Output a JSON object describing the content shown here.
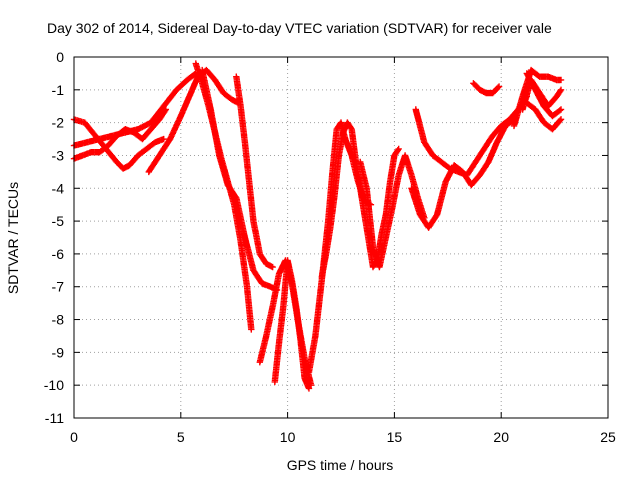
{
  "chart_data": {
    "type": "scatter",
    "title": "Day 302 of 2014, Sidereal Day-to-day VTEC variation (SDTVAR) for receiver vale",
    "xlabel": "GPS time / hours",
    "ylabel": "SDTVAR / TECUs",
    "xlim": [
      0,
      25
    ],
    "ylim": [
      -11,
      0
    ],
    "x_ticks": [
      "0",
      "5",
      "10",
      "15",
      "20",
      "25"
    ],
    "y_ticks": [
      "0",
      "-1",
      "-2",
      "-3",
      "-4",
      "-5",
      "-6",
      "-7",
      "-8",
      "-9",
      "-10",
      "-11"
    ],
    "grid": true,
    "marker": "+",
    "color": "#ff0000",
    "series": [
      {
        "x": [
          0.0,
          0.5,
          1.0,
          1.5,
          2.0,
          2.3,
          2.6,
          3.0,
          3.4,
          3.8,
          4.2
        ],
        "y": [
          -1.9,
          -2.0,
          -2.4,
          -2.8,
          -3.2,
          -3.4,
          -3.3,
          -3.0,
          -2.8,
          -2.6,
          -2.5
        ]
      },
      {
        "x": [
          0.0,
          0.4,
          0.8,
          1.2,
          1.6,
          2.0,
          2.4,
          2.8,
          3.2,
          3.6,
          4.0,
          4.3
        ],
        "y": [
          -3.1,
          -3.0,
          -2.9,
          -2.9,
          -2.7,
          -2.4,
          -2.2,
          -2.3,
          -2.5,
          -2.2,
          -1.9,
          -1.6
        ]
      },
      {
        "x": [
          0.0,
          0.6,
          1.2,
          1.8,
          2.4,
          3.0,
          3.6,
          4.2,
          4.8,
          5.3,
          5.7
        ],
        "y": [
          -2.7,
          -2.6,
          -2.5,
          -2.4,
          -2.3,
          -2.2,
          -2.0,
          -1.5,
          -1.0,
          -0.7,
          -0.5
        ]
      },
      {
        "x": [
          3.5,
          4.0,
          4.5,
          5.0,
          5.4,
          5.8,
          6.2,
          6.6,
          7.0,
          7.4,
          7.7
        ],
        "y": [
          -3.5,
          -3.0,
          -2.5,
          -1.8,
          -1.2,
          -0.6,
          -0.4,
          -0.7,
          -1.1,
          -1.3,
          -1.4
        ]
      },
      {
        "x": [
          5.7,
          6.0,
          6.3,
          6.6,
          6.9,
          7.2,
          7.5,
          7.8,
          8.1,
          8.3
        ],
        "y": [
          -0.2,
          -0.8,
          -1.5,
          -2.3,
          -3.1,
          -3.8,
          -4.5,
          -5.6,
          -7.0,
          -8.3
        ]
      },
      {
        "x": [
          6.0,
          6.4,
          6.8,
          7.2,
          7.6,
          8.0,
          8.4,
          8.8,
          9.2,
          9.5
        ],
        "y": [
          -0.4,
          -1.6,
          -3.0,
          -3.9,
          -4.3,
          -5.5,
          -6.5,
          -6.9,
          -7.0,
          -7.1
        ]
      },
      {
        "x": [
          7.6,
          7.8,
          8.0,
          8.2,
          8.4,
          8.7,
          9.0,
          9.3
        ],
        "y": [
          -0.6,
          -1.5,
          -2.6,
          -3.8,
          -5.0,
          -6.0,
          -6.3,
          -6.4
        ]
      },
      {
        "x": [
          8.7,
          9.0,
          9.3,
          9.6,
          9.9,
          10.2,
          10.5,
          10.8,
          11.1
        ],
        "y": [
          -9.3,
          -8.5,
          -7.6,
          -6.6,
          -6.2,
          -6.9,
          -8.1,
          -9.2,
          -10.0
        ]
      },
      {
        "x": [
          9.4,
          9.6,
          9.8,
          10.0,
          10.2,
          10.4,
          10.6,
          10.8,
          11.0
        ],
        "y": [
          -9.9,
          -8.7,
          -7.6,
          -6.2,
          -6.8,
          -7.6,
          -8.6,
          -9.8,
          -10.1
        ]
      },
      {
        "x": [
          11.0,
          11.3,
          11.6,
          11.9,
          12.1,
          12.3,
          12.5,
          12.7,
          13.0,
          13.3,
          13.6,
          13.9
        ],
        "y": [
          -9.6,
          -8.5,
          -6.8,
          -5.0,
          -3.5,
          -2.2,
          -2.0,
          -2.5,
          -3.0,
          -3.8,
          -4.4,
          -4.5
        ]
      },
      {
        "x": [
          11.6,
          11.8,
          12.0,
          12.2,
          12.4,
          12.6,
          12.8,
          13.0,
          13.2,
          13.4,
          13.6,
          13.8,
          14.0,
          14.2,
          14.4,
          14.6,
          14.8,
          15.0,
          15.2
        ],
        "y": [
          -6.7,
          -6.0,
          -5.2,
          -4.2,
          -3.0,
          -2.3,
          -2.0,
          -2.2,
          -3.2,
          -4.0,
          -4.8,
          -5.6,
          -6.4,
          -6.2,
          -5.4,
          -4.8,
          -3.8,
          -3.0,
          -2.8
        ]
      },
      {
        "x": [
          13.4,
          13.7,
          14.0,
          14.3,
          14.6,
          14.9,
          15.2,
          15.5,
          15.8,
          16.1,
          16.4
        ],
        "y": [
          -3.2,
          -4.0,
          -5.8,
          -6.4,
          -5.5,
          -4.6,
          -3.6,
          -3.0,
          -3.6,
          -4.3,
          -4.9
        ]
      },
      {
        "x": [
          15.8,
          16.2,
          16.6,
          17.0,
          17.4,
          17.8,
          18.2,
          18.6,
          19.0,
          19.4,
          19.8,
          20.2,
          20.6
        ],
        "y": [
          -4.0,
          -4.8,
          -5.2,
          -4.8,
          -3.8,
          -3.3,
          -3.5,
          -3.9,
          -3.6,
          -3.2,
          -2.6,
          -2.1,
          -1.9
        ]
      },
      {
        "x": [
          16.0,
          16.4,
          16.8,
          17.2,
          17.6,
          18.0,
          18.4,
          18.8,
          19.2,
          19.6,
          20.0,
          20.4,
          20.8,
          21.2
        ],
        "y": [
          -1.6,
          -2.6,
          -3.0,
          -3.2,
          -3.4,
          -3.5,
          -3.6,
          -3.2,
          -2.8,
          -2.4,
          -2.1,
          -1.9,
          -1.6,
          -1.2
        ]
      },
      {
        "x": [
          18.7,
          19.0,
          19.3,
          19.6,
          19.9
        ],
        "y": [
          -0.8,
          -1.0,
          -1.1,
          -1.1,
          -0.9
        ]
      },
      {
        "x": [
          20.6,
          21.0,
          21.4,
          21.8,
          22.2,
          22.6,
          22.8
        ],
        "y": [
          -2.1,
          -1.2,
          -0.4,
          -0.6,
          -0.6,
          -0.7,
          -0.7
        ]
      },
      {
        "x": [
          21.0,
          21.4,
          21.8,
          22.2,
          22.6,
          22.8
        ],
        "y": [
          -1.6,
          -0.7,
          -1.1,
          -1.5,
          -1.2,
          -1.0
        ]
      },
      {
        "x": [
          21.2,
          21.6,
          22.0,
          22.4,
          22.8
        ],
        "y": [
          -1.4,
          -1.6,
          -2.0,
          -2.2,
          -1.9
        ]
      },
      {
        "x": [
          21.2,
          21.6,
          22.0,
          22.4,
          22.8
        ],
        "y": [
          -0.5,
          -1.0,
          -1.5,
          -1.8,
          -1.6
        ]
      }
    ]
  }
}
